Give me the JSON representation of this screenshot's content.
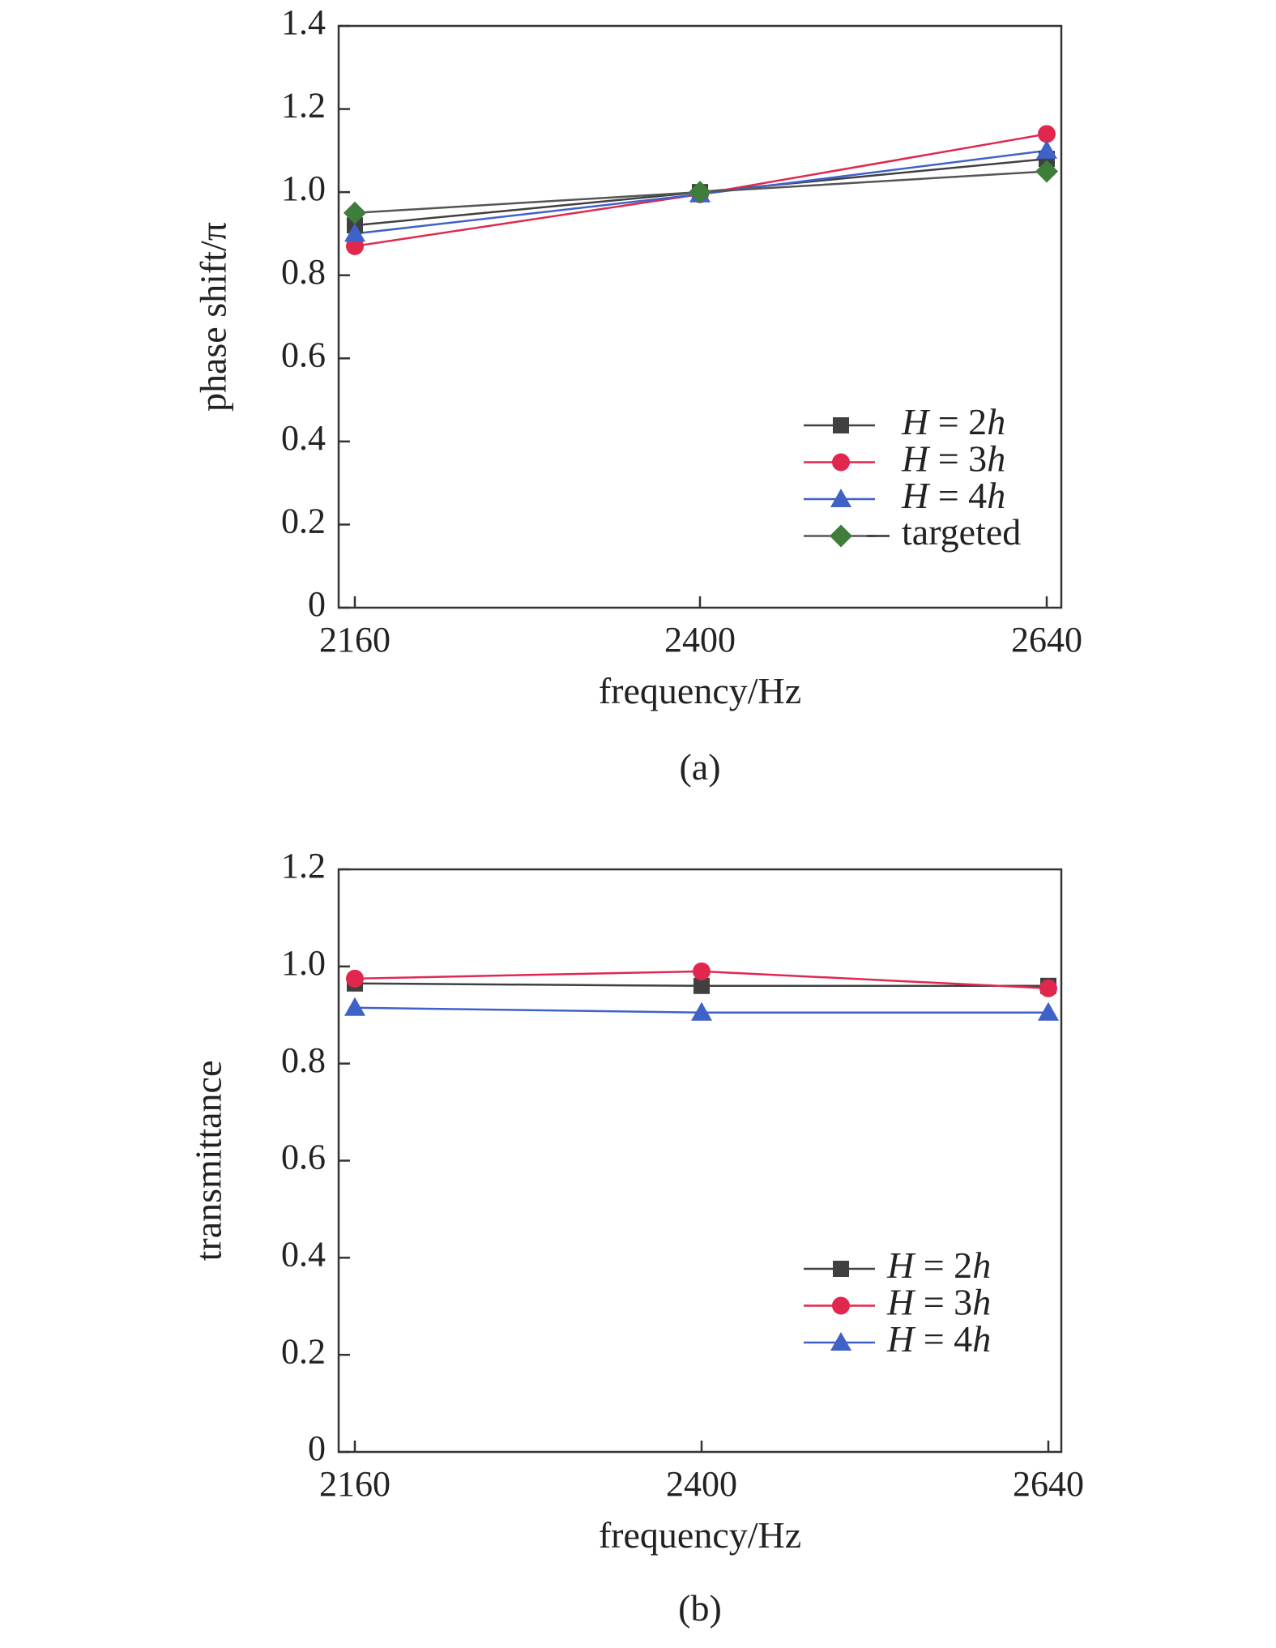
{
  "chart_data": [
    {
      "type": "line",
      "panel_label": "(a)",
      "xlabel": "frequency/Hz",
      "ylabel": "phase shift/π",
      "x": [
        2160,
        2400,
        2640
      ],
      "xticks": [
        "2160",
        "2400",
        "2640"
      ],
      "ylim": [
        0,
        1.4
      ],
      "yticks": [
        "0",
        "0.2",
        "0.4",
        "0.6",
        "0.8",
        "1.0",
        "1.2",
        "1.4"
      ],
      "grid": false,
      "legend_position": "bottom-right",
      "series": [
        {
          "name": "H = 2h",
          "marker": "square",
          "color": "#404040",
          "values": [
            0.92,
            1.0,
            1.08
          ]
        },
        {
          "name": "H = 3h",
          "marker": "circle",
          "color": "#e0284f",
          "values": [
            0.87,
            0.995,
            1.14
          ]
        },
        {
          "name": "H = 4h",
          "marker": "triangle",
          "color": "#3f62c9",
          "values": [
            0.9,
            0.995,
            1.1
          ]
        },
        {
          "name": "targeted",
          "marker": "diamond",
          "color": "#3e7d3a",
          "line_color": "#555555",
          "legend_dash": true,
          "values": [
            0.95,
            1.0,
            1.05
          ]
        }
      ]
    },
    {
      "type": "line",
      "panel_label": "(b)",
      "xlabel": "frequency/Hz",
      "ylabel": "transmittance",
      "x": [
        2160,
        2400,
        2640
      ],
      "xticks": [
        "2160",
        "2400",
        "2640"
      ],
      "ylim": [
        0,
        1.2
      ],
      "yticks": [
        "0",
        "0.2",
        "0.4",
        "0.6",
        "0.8",
        "1.0",
        "1.2"
      ],
      "grid": false,
      "legend_position": "bottom-right",
      "series": [
        {
          "name": "H = 2h",
          "marker": "square",
          "color": "#404040",
          "values": [
            0.965,
            0.96,
            0.96
          ]
        },
        {
          "name": "H = 3h",
          "marker": "circle",
          "color": "#e0284f",
          "values": [
            0.975,
            0.99,
            0.955
          ]
        },
        {
          "name": "H = 4h",
          "marker": "triangle",
          "color": "#3f62c9",
          "values": [
            0.915,
            0.905,
            0.905
          ]
        }
      ]
    }
  ]
}
